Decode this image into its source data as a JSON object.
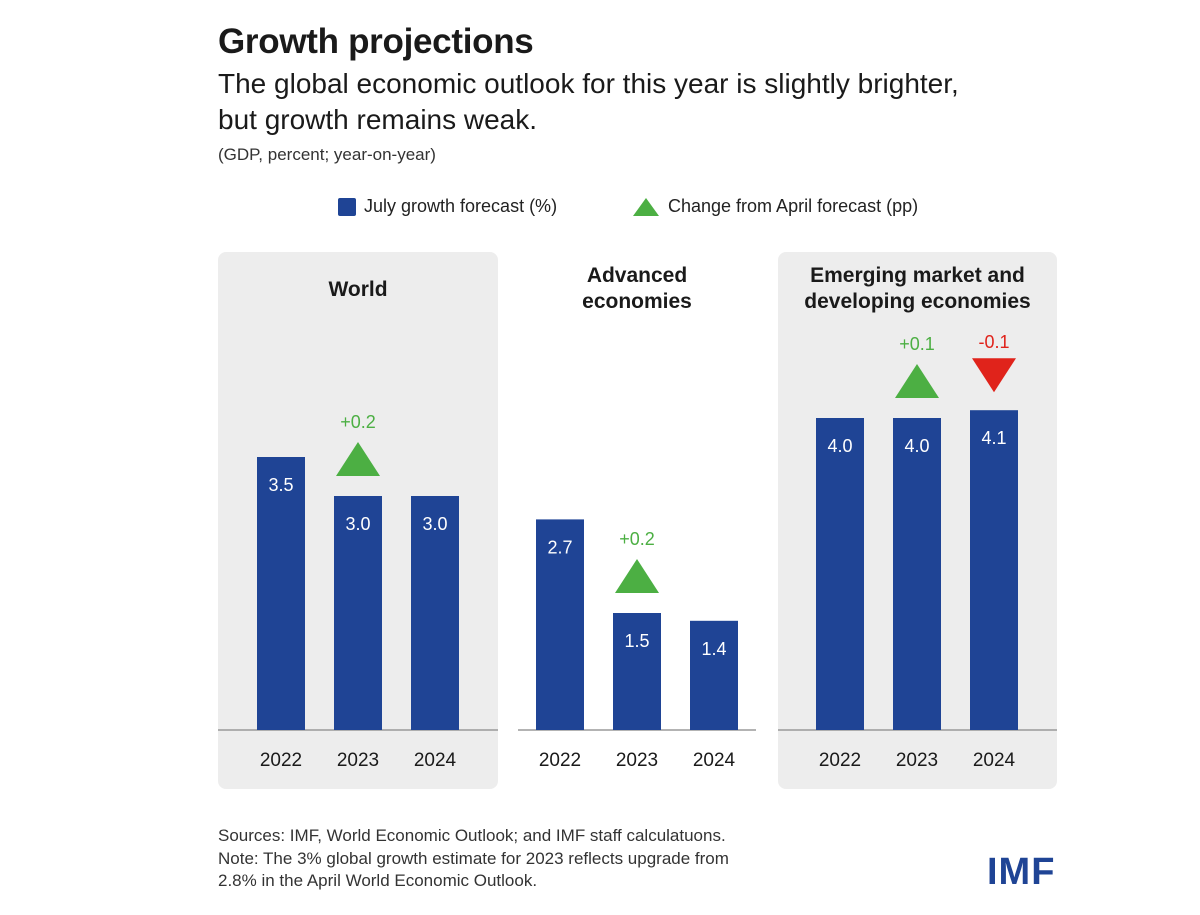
{
  "header": {
    "title": "Growth projections",
    "subtitle_line1": "The global economic outlook for this year is slightly brighter,",
    "subtitle_line2": "but growth remains weak.",
    "units": "(GDP, percent; year-on-year)"
  },
  "legend": {
    "bar_label": "July growth forecast (%)",
    "change_label": "Change from April forecast (pp)"
  },
  "colors": {
    "bar": "#1f4495",
    "up": "#4caf43",
    "down": "#e0231b",
    "panel": "#ededed"
  },
  "chart_data": [
    {
      "type": "bar",
      "title_lines": [
        "World"
      ],
      "categories": [
        "2022",
        "2023",
        "2024"
      ],
      "values": [
        3.5,
        3.0,
        3.0
      ],
      "value_labels": [
        "3.5",
        "3.0",
        "3.0"
      ],
      "changes": [
        null,
        0.2,
        null
      ],
      "change_labels": [
        null,
        "+0.2",
        null
      ],
      "ylim": [
        0,
        4.1
      ],
      "shaded": true
    },
    {
      "type": "bar",
      "title_lines": [
        "Advanced",
        "economies"
      ],
      "categories": [
        "2022",
        "2023",
        "2024"
      ],
      "values": [
        2.7,
        1.5,
        1.4
      ],
      "value_labels": [
        "2.7",
        "1.5",
        "1.4"
      ],
      "changes": [
        null,
        0.2,
        null
      ],
      "change_labels": [
        null,
        "+0.2",
        null
      ],
      "ylim": [
        0,
        4.1
      ],
      "shaded": false
    },
    {
      "type": "bar",
      "title_lines": [
        "Emerging market and",
        "developing economies"
      ],
      "categories": [
        "2022",
        "2023",
        "2024"
      ],
      "values": [
        4.0,
        4.0,
        4.1
      ],
      "value_labels": [
        "4.0",
        "4.0",
        "4.1"
      ],
      "changes": [
        null,
        0.1,
        -0.1
      ],
      "change_labels": [
        null,
        "+0.1",
        "-0.1"
      ],
      "ylim": [
        0,
        4.1
      ],
      "shaded": true
    }
  ],
  "footer": {
    "source": "Sources: IMF, World Economic Outlook; and IMF staff calculatuons.",
    "note_line1": "Note: The 3% global growth estimate for 2023 reflects upgrade from",
    "note_line2": "2.8% in the April World Economic Outlook.",
    "logo": "IMF"
  }
}
